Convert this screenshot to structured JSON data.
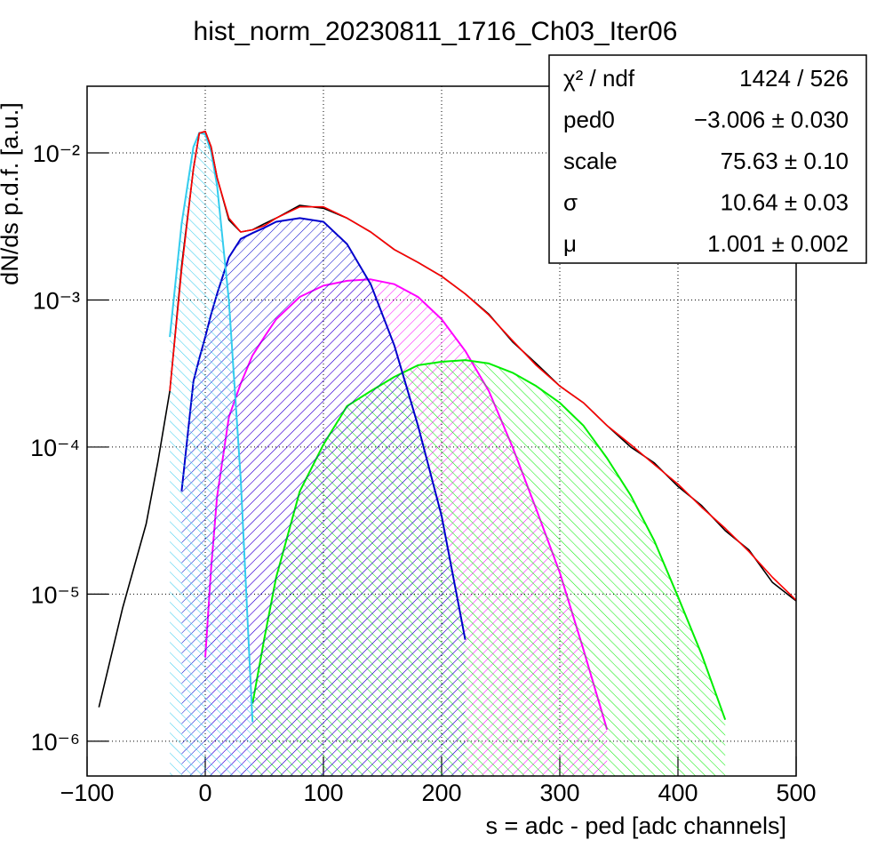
{
  "chart_data": {
    "type": "line",
    "title": "hist_norm_20230811_1716_Ch03_Iter06",
    "x_label": "s = adc - ped [adc channels]",
    "y_label": "dN/ds p.d.f. [a.u.]",
    "log_y": true,
    "grid": true,
    "xlim": [
      -100,
      500
    ],
    "ylim": [
      5.8e-07,
      0.0284
    ],
    "xticks": [
      {
        "value": -100,
        "label": "−100"
      },
      0,
      100,
      200,
      300,
      400,
      500
    ],
    "yticks": [
      {
        "value": 0.01,
        "label": "10⁻²"
      },
      {
        "value": 0.001,
        "label": "10⁻³"
      },
      {
        "value": 0.0001,
        "label": "10⁻⁴"
      },
      {
        "value": 1e-05,
        "label": "10⁻⁵"
      },
      {
        "value": 1e-06,
        "label": "10⁻⁶"
      }
    ],
    "x": [
      -90,
      -70,
      -50,
      -40,
      -30,
      -20,
      -10,
      -5,
      0,
      5,
      10,
      20,
      30,
      40,
      50,
      60,
      80,
      100,
      120,
      140,
      160,
      180,
      200,
      220,
      240,
      260,
      280,
      300,
      320,
      340,
      360,
      380,
      400,
      420,
      440,
      460,
      480,
      500
    ],
    "series": [
      {
        "color": "#ff00ff",
        "hatch": true,
        "values": [
          null,
          null,
          null,
          null,
          null,
          null,
          null,
          null,
          3.7e-06,
          1.5e-05,
          4.6e-05,
          0.00016,
          0.00027,
          0.00042,
          0.00056,
          0.00074,
          0.00105,
          0.00125,
          0.00135,
          0.00138,
          0.00128,
          0.00105,
          0.00074,
          0.00045,
          0.00024,
          0.0001,
          3.8e-05,
          1.4e-05,
          4.2e-06,
          1.2e-06,
          null,
          null,
          null,
          null,
          null,
          null,
          null,
          null
        ]
      },
      {
        "color": "#00ee00",
        "hatch": true,
        "values": [
          null,
          null,
          null,
          null,
          null,
          null,
          null,
          null,
          null,
          null,
          null,
          null,
          null,
          1.8e-06,
          5e-06,
          1.3e-05,
          5e-05,
          0.000104,
          0.00019,
          0.00024,
          0.0003,
          0.00036,
          0.00038,
          0.00039,
          0.00037,
          0.00032,
          0.00026,
          0.0002,
          0.00014,
          8.4e-05,
          4.7e-05,
          2.3e-05,
          9.6e-06,
          3.9e-06,
          1.4e-06,
          null,
          null,
          null
        ]
      },
      {
        "color": "#0000cc",
        "hatch": true,
        "values": [
          null,
          null,
          null,
          null,
          null,
          5e-05,
          0.00028,
          0.0004,
          0.00056,
          0.0008,
          0.0011,
          0.00195,
          0.0026,
          0.00285,
          0.0031,
          0.0034,
          0.0036,
          0.0034,
          0.0024,
          0.00128,
          0.00049,
          0.00014,
          3.4e-05,
          4.9e-06,
          null,
          null,
          null,
          null,
          null,
          null,
          null,
          null,
          null,
          null,
          null,
          null,
          null,
          null
        ]
      },
      {
        "color": "#33ccee",
        "hatch": true,
        "values": [
          null,
          null,
          null,
          null,
          0.00056,
          0.0033,
          0.011,
          0.0137,
          0.0134,
          0.0102,
          0.006,
          0.00099,
          6.1e-05,
          1.35e-06,
          null,
          null,
          null,
          null,
          null,
          null,
          null,
          null,
          null,
          null,
          null,
          null,
          null,
          null,
          null,
          null,
          null,
          null,
          null,
          null,
          null,
          null,
          null,
          null
        ]
      },
      {
        "color": "#000000",
        "hatch": false,
        "values": [
          1.7e-06,
          8e-06,
          3e-05,
          8e-05,
          0.00024,
          0.0017,
          0.0078,
          0.0136,
          0.014,
          0.011,
          0.0068,
          0.0035,
          0.0029,
          0.003,
          0.0033,
          0.0036,
          0.0044,
          0.0042,
          0.0036,
          0.0029,
          0.0022,
          0.0018,
          0.00145,
          0.0011,
          0.0008,
          0.00052,
          0.00037,
          0.00026,
          0.0002,
          0.00014,
          0.0001,
          7.8e-05,
          5.4e-05,
          4e-05,
          2.7e-05,
          2e-05,
          1.2e-05,
          9e-06
        ]
      },
      {
        "color": "#ff0000",
        "hatch": false,
        "values": [
          null,
          null,
          null,
          null,
          0.00024,
          0.0016,
          0.0078,
          0.0136,
          0.014,
          0.011,
          0.0068,
          0.0036,
          0.0029,
          0.003,
          0.0032,
          0.0036,
          0.0043,
          0.0043,
          0.0036,
          0.0029,
          0.0022,
          0.0018,
          0.00145,
          0.0011,
          0.00079,
          0.00053,
          0.00036,
          0.00026,
          0.0002,
          0.00014,
          0.000104,
          7.6e-05,
          5.6e-05,
          3.9e-05,
          2.8e-05,
          1.95e-05,
          1.3e-05,
          9.1e-06
        ]
      }
    ],
    "stats_box": [
      {
        "name": "χ² / ndf",
        "value": "1424 / 526"
      },
      {
        "name": "ped0",
        "value": "−3.006 ± 0.030"
      },
      {
        "name": "scale",
        "value": "75.63 ± 0.10"
      },
      {
        "name": "σ",
        "value": "10.64 ± 0.03"
      },
      {
        "name": "μ",
        "value": "1.001 ± 0.002"
      }
    ]
  }
}
